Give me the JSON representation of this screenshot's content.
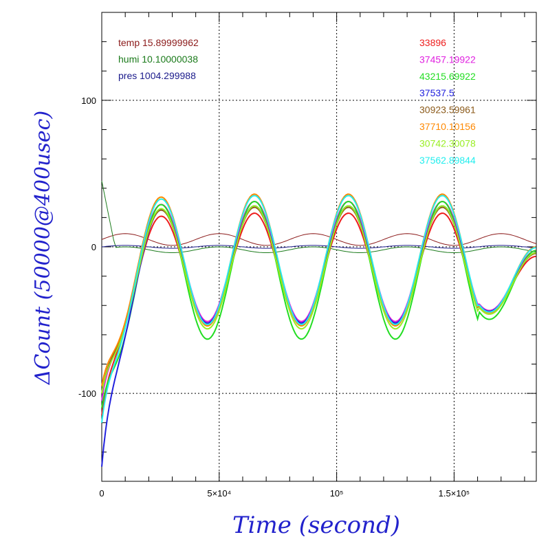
{
  "chart_data": {
    "type": "line",
    "title": "",
    "xlabel": "Time (second)",
    "ylabel": "ΔCount (50000@400usec)",
    "xlim": [
      0,
      185000
    ],
    "ylim": [
      -160,
      160
    ],
    "grid": true,
    "x_major_ticks": [
      {
        "value": 0,
        "label": "0"
      },
      {
        "value": 50000,
        "label": "5×10⁴"
      },
      {
        "value": 100000,
        "label": "10⁵"
      },
      {
        "value": 150000,
        "label": "1.5×10⁵"
      }
    ],
    "y_major_ticks": [
      {
        "value": -100,
        "label": "-100"
      },
      {
        "value": 0,
        "label": "0"
      },
      {
        "value": 100,
        "label": "100"
      }
    ],
    "env_legend": [
      {
        "label": "temp 15.89999962",
        "color": "#8b1a1a"
      },
      {
        "label": "humi 10.10000038",
        "color": "#1a7a1a"
      },
      {
        "label": "pres 1004.299988",
        "color": "#1a1a8b"
      }
    ],
    "env_series": [
      {
        "name": "temp 15.89999962",
        "color": "#8b1a1a",
        "offset": 5,
        "amp": 4
      },
      {
        "name": "humi 10.10000038",
        "color": "#1a7a1a",
        "offset": -2,
        "amp": 2
      },
      {
        "name": "pres 1004.299988",
        "color": "#1a1a8b",
        "offset": 0,
        "amp": 1
      }
    ],
    "series": [
      {
        "name": "33896",
        "color": "#ee1c1c",
        "amp": 37,
        "offset": -14,
        "start": -115
      },
      {
        "name": "37457.19922",
        "color": "#e020e0",
        "amp": 41,
        "offset": -10,
        "start": -105
      },
      {
        "name": "43215.69922",
        "color": "#22dd22",
        "amp": 47,
        "offset": -16,
        "start": -110
      },
      {
        "name": "37537.5",
        "color": "#2020dd",
        "amp": 40,
        "offset": -12,
        "start": -150
      },
      {
        "name": "30923.59961",
        "color": "#8b5a1a",
        "amp": 40,
        "offset": -13,
        "start": -100
      },
      {
        "name": "37710.10156",
        "color": "#ff8800",
        "amp": 45,
        "offset": -9,
        "start": -95
      },
      {
        "name": "30742.30078",
        "color": "#99ee22",
        "amp": 42,
        "offset": -14,
        "start": -100
      },
      {
        "name": "37562.89844",
        "color": "#22eeee",
        "amp": 44,
        "offset": -9,
        "start": -120
      }
    ],
    "period": 40000,
    "phase_x": 10000
  }
}
